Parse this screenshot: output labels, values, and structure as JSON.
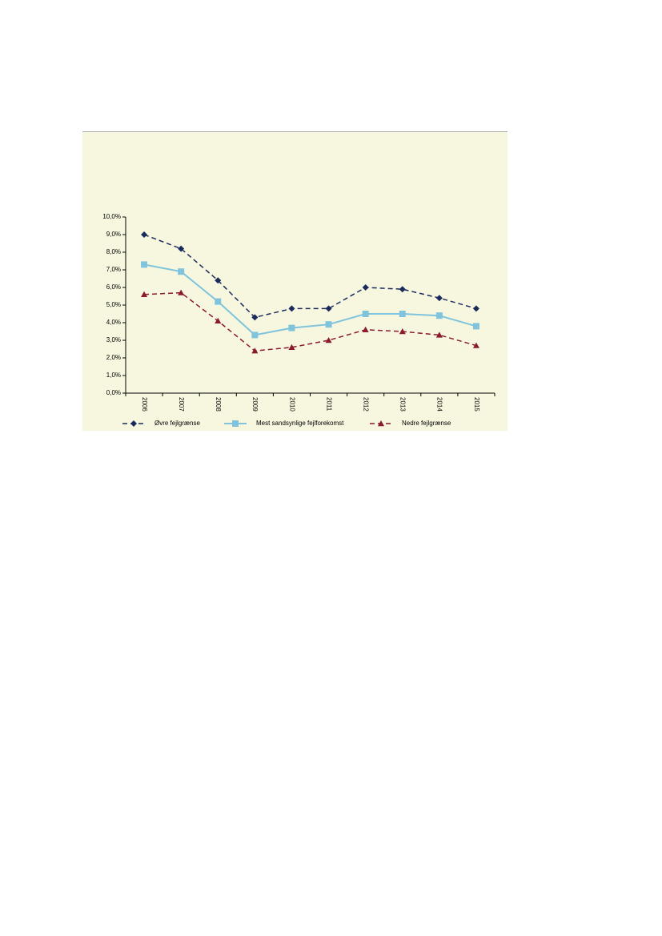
{
  "chart_data": {
    "type": "line",
    "categories": [
      "2006",
      "2007",
      "2008",
      "2009",
      "2010",
      "2011",
      "2012",
      "2013",
      "2014",
      "2015"
    ],
    "series": [
      {
        "name": "Øvre fejlgrænse",
        "color": "#1b2a5c",
        "dashed": true,
        "marker": "diamond",
        "values": [
          9.0,
          8.2,
          6.4,
          4.3,
          4.8,
          4.8,
          6.0,
          5.9,
          5.4,
          4.8
        ]
      },
      {
        "name": "Mest sandsynlige fejlforekomst",
        "color": "#7fc4dc",
        "dashed": false,
        "marker": "square",
        "values": [
          7.3,
          6.9,
          5.2,
          3.3,
          3.7,
          3.9,
          4.5,
          4.5,
          4.4,
          3.8
        ]
      },
      {
        "name": "Nedre fejlgrænse",
        "color": "#8a1a2c",
        "dashed": true,
        "marker": "triangle",
        "values": [
          5.6,
          5.7,
          4.1,
          2.4,
          2.6,
          3.0,
          3.6,
          3.5,
          3.3,
          2.7
        ]
      }
    ],
    "ylim": [
      0,
      10
    ],
    "yticks": [
      {
        "value": 0,
        "label": "0,0%"
      },
      {
        "value": 1,
        "label": "1,0%"
      },
      {
        "value": 2,
        "label": "2,0%"
      },
      {
        "value": 3,
        "label": "3,0%"
      },
      {
        "value": 4,
        "label": "4,0%"
      },
      {
        "value": 5,
        "label": "5,0%"
      },
      {
        "value": 6,
        "label": "6,0%"
      },
      {
        "value": 7,
        "label": "7,0%"
      },
      {
        "value": 8,
        "label": "8,0%"
      },
      {
        "value": 9,
        "label": "9,0%"
      },
      {
        "value": 10,
        "label": "10,0%"
      }
    ],
    "grid": false,
    "legend": "bottom"
  }
}
